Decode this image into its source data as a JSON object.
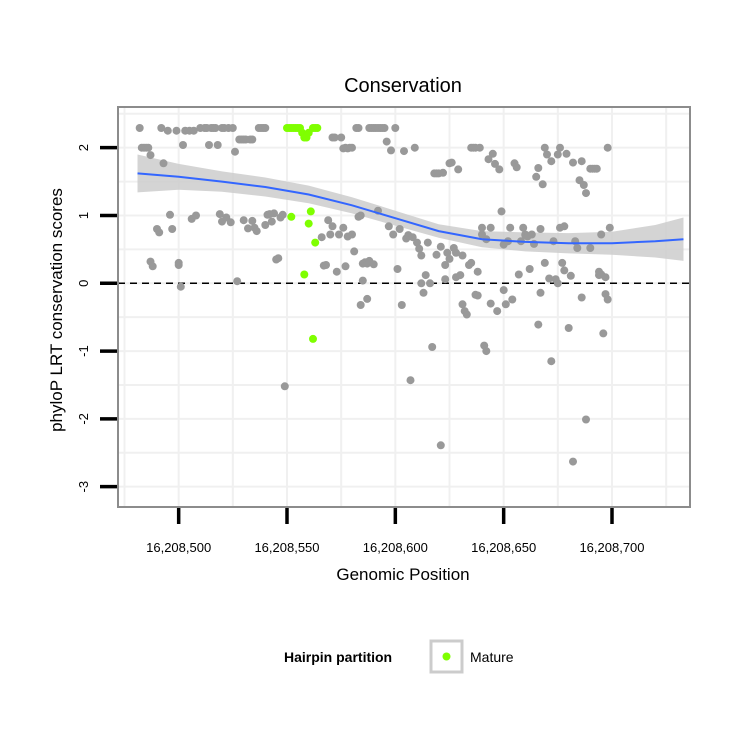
{
  "chart_data": {
    "type": "scatter",
    "title": "Conservation",
    "xlabel": "Genomic Position",
    "ylabel": "phyloP LRT conservation scores",
    "xlim": [
      16208472,
      16208736
    ],
    "ylim": [
      -3.3,
      2.6
    ],
    "x_ticks": [
      16208500,
      16208550,
      16208600,
      16208650,
      16208700
    ],
    "x_tick_labels": [
      "16,208,500",
      "16,208,550",
      "16,208,600",
      "16,208,650",
      "16,208,700"
    ],
    "y_ticks": [
      -3,
      -2,
      -1,
      0,
      1,
      2
    ],
    "y_tick_labels": [
      "-3",
      "-2",
      "-1",
      "0",
      "1",
      "2"
    ],
    "grid": true,
    "reference_line": {
      "y": 0,
      "style": "dashed"
    },
    "colors": {
      "other_points": "#999999",
      "mature_points": "#7fff00",
      "trend_line": "#3366ff",
      "confidence_band": "#cccccc",
      "panel_border": "#8c8c8c",
      "grid": "#f0f0f0"
    },
    "legend": {
      "title": "Hairpin partition",
      "placement": "bottom",
      "entries": [
        {
          "label": "Mature",
          "color": "#7fff00"
        }
      ]
    },
    "trend": {
      "x": [
        16208481,
        16208500,
        16208520,
        16208540,
        16208560,
        16208580,
        16208600,
        16208620,
        16208640,
        16208660,
        16208680,
        16208700,
        16208720,
        16208733
      ],
      "y": [
        1.62,
        1.57,
        1.5,
        1.42,
        1.31,
        1.15,
        0.96,
        0.77,
        0.65,
        0.61,
        0.59,
        0.59,
        0.62,
        0.65
      ],
      "lower": [
        1.34,
        1.38,
        1.35,
        1.28,
        1.18,
        1.03,
        0.85,
        0.67,
        0.53,
        0.47,
        0.44,
        0.42,
        0.38,
        0.33
      ],
      "upper": [
        1.9,
        1.76,
        1.65,
        1.56,
        1.44,
        1.27,
        1.07,
        0.87,
        0.77,
        0.75,
        0.74,
        0.76,
        0.86,
        0.97
      ]
    },
    "series": [
      {
        "name": "Mature",
        "points": [
          [
            16208550,
            2.29
          ],
          [
            16208551,
            2.29
          ],
          [
            16208552,
            2.29
          ],
          [
            16208553,
            2.29
          ],
          [
            16208554,
            2.29
          ],
          [
            16208555,
            2.29
          ],
          [
            16208556,
            2.29
          ],
          [
            16208557,
            2.22
          ],
          [
            16208558,
            2.15
          ],
          [
            16208559,
            2.15
          ],
          [
            16208560,
            2.22
          ],
          [
            16208562,
            2.29
          ],
          [
            16208563,
            2.29
          ],
          [
            16208564,
            2.29
          ],
          [
            16208552,
            0.98
          ],
          [
            16208558,
            0.13
          ],
          [
            16208560,
            0.88
          ],
          [
            16208561,
            1.06
          ],
          [
            16208563,
            0.6
          ],
          [
            16208562,
            -0.82
          ]
        ]
      },
      {
        "points": [
          [
            16208482,
            2.29
          ],
          [
            16208483,
            2.0
          ],
          [
            16208484,
            2.0
          ],
          [
            16208485,
            2.0
          ],
          [
            16208486,
            2.0
          ],
          [
            16208487,
            1.89
          ],
          [
            16208487,
            0.32
          ],
          [
            16208488,
            0.25
          ],
          [
            16208490,
            0.8
          ],
          [
            16208491,
            0.75
          ],
          [
            16208492,
            2.29
          ],
          [
            16208493,
            1.77
          ],
          [
            16208495,
            2.25
          ],
          [
            16208496,
            1.01
          ],
          [
            16208497,
            0.8
          ],
          [
            16208499,
            2.25
          ],
          [
            16208500,
            0.27
          ],
          [
            16208500,
            0.3
          ],
          [
            16208501,
            -0.05
          ],
          [
            16208502,
            2.04
          ],
          [
            16208503,
            2.25
          ],
          [
            16208505,
            2.25
          ],
          [
            16208506,
            0.95
          ],
          [
            16208507,
            2.25
          ],
          [
            16208508,
            1.0
          ],
          [
            16208510,
            2.29
          ],
          [
            16208512,
            2.29
          ],
          [
            16208513,
            2.29
          ],
          [
            16208514,
            2.04
          ],
          [
            16208515,
            2.29
          ],
          [
            16208516,
            2.29
          ],
          [
            16208517,
            2.29
          ],
          [
            16208518,
            2.04
          ],
          [
            16208519,
            1.02
          ],
          [
            16208520,
            2.29
          ],
          [
            16208520,
            0.91
          ],
          [
            16208521,
            2.29
          ],
          [
            16208522,
            0.97
          ],
          [
            16208523,
            2.29
          ],
          [
            16208524,
            0.9
          ],
          [
            16208525,
            2.29
          ],
          [
            16208526,
            1.94
          ],
          [
            16208527,
            0.03
          ],
          [
            16208528,
            2.12
          ],
          [
            16208529,
            2.12
          ],
          [
            16208530,
            0.93
          ],
          [
            16208530,
            2.12
          ],
          [
            16208531,
            2.12
          ],
          [
            16208532,
            0.81
          ],
          [
            16208533,
            2.12
          ],
          [
            16208534,
            2.12
          ],
          [
            16208534,
            0.92
          ],
          [
            16208535,
            0.82
          ],
          [
            16208536,
            0.77
          ],
          [
            16208537,
            2.29
          ],
          [
            16208538,
            2.29
          ],
          [
            16208539,
            2.29
          ],
          [
            16208540,
            0.86
          ],
          [
            16208540,
            2.29
          ],
          [
            16208541,
            1.01
          ],
          [
            16208542,
            1.02
          ],
          [
            16208543,
            0.91
          ],
          [
            16208544,
            1.03
          ],
          [
            16208545,
            0.35
          ],
          [
            16208546,
            0.37
          ],
          [
            16208547,
            0.97
          ],
          [
            16208548,
            1.01
          ],
          [
            16208549,
            -1.52
          ],
          [
            16208566,
            0.68
          ],
          [
            16208567,
            0.26
          ],
          [
            16208568,
            0.27
          ],
          [
            16208569,
            0.93
          ],
          [
            16208570,
            0.72
          ],
          [
            16208571,
            2.15
          ],
          [
            16208571,
            0.84
          ],
          [
            16208572,
            2.15
          ],
          [
            16208573,
            0.17
          ],
          [
            16208574,
            0.72
          ],
          [
            16208575,
            2.15
          ],
          [
            16208576,
            1.99
          ],
          [
            16208576,
            0.82
          ],
          [
            16208577,
            2.0
          ],
          [
            16208577,
            0.25
          ],
          [
            16208578,
            1.99
          ],
          [
            16208578,
            0.69
          ],
          [
            16208579,
            2.0
          ],
          [
            16208580,
            2.0
          ],
          [
            16208580,
            0.72
          ],
          [
            16208581,
            0.47
          ],
          [
            16208582,
            2.29
          ],
          [
            16208583,
            2.29
          ],
          [
            16208583,
            0.98
          ],
          [
            16208584,
            1.0
          ],
          [
            16208584,
            -0.32
          ],
          [
            16208585,
            0.29
          ],
          [
            16208585,
            0.04
          ],
          [
            16208586,
            0.31
          ],
          [
            16208587,
            -0.23
          ],
          [
            16208587,
            0.29
          ],
          [
            16208588,
            2.29
          ],
          [
            16208588,
            0.33
          ],
          [
            16208589,
            2.29
          ],
          [
            16208590,
            2.29
          ],
          [
            16208590,
            0.28
          ],
          [
            16208591,
            2.29
          ],
          [
            16208592,
            2.29
          ],
          [
            16208592,
            1.07
          ],
          [
            16208593,
            2.29
          ],
          [
            16208594,
            2.29
          ],
          [
            16208595,
            2.29
          ],
          [
            16208596,
            2.09
          ],
          [
            16208597,
            0.84
          ],
          [
            16208598,
            1.96
          ],
          [
            16208599,
            0.72
          ],
          [
            16208600,
            2.29
          ],
          [
            16208601,
            0.21
          ],
          [
            16208602,
            0.8
          ],
          [
            16208603,
            -0.32
          ],
          [
            16208604,
            1.95
          ],
          [
            16208605,
            0.66
          ],
          [
            16208606,
            0.71
          ],
          [
            16208607,
            -1.43
          ],
          [
            16208608,
            0.68
          ],
          [
            16208609,
            2.0
          ],
          [
            16208610,
            0.6
          ],
          [
            16208611,
            0.51
          ],
          [
            16208612,
            0.41
          ],
          [
            16208612,
            0.0
          ],
          [
            16208613,
            -0.14
          ],
          [
            16208614,
            0.12
          ],
          [
            16208615,
            0.6
          ],
          [
            16208616,
            0.0
          ],
          [
            16208617,
            -0.94
          ],
          [
            16208618,
            1.62
          ],
          [
            16208619,
            1.62
          ],
          [
            16208619,
            0.42
          ],
          [
            16208620,
            1.62
          ],
          [
            16208621,
            0.54
          ],
          [
            16208621,
            -2.39
          ],
          [
            16208622,
            1.63
          ],
          [
            16208623,
            0.06
          ],
          [
            16208623,
            0.27
          ],
          [
            16208624,
            0.45
          ],
          [
            16208625,
            1.77
          ],
          [
            16208625,
            0.36
          ],
          [
            16208626,
            1.78
          ],
          [
            16208627,
            0.52
          ],
          [
            16208628,
            0.09
          ],
          [
            16208628,
            0.45
          ],
          [
            16208629,
            1.68
          ],
          [
            16208630,
            0.12
          ],
          [
            16208631,
            -0.31
          ],
          [
            16208631,
            0.41
          ],
          [
            16208632,
            -0.41
          ],
          [
            16208633,
            -0.46
          ],
          [
            16208634,
            0.27
          ],
          [
            16208635,
            2.0
          ],
          [
            16208635,
            0.3
          ],
          [
            16208636,
            2.0
          ],
          [
            16208637,
            2.0
          ],
          [
            16208637,
            -0.17
          ],
          [
            16208638,
            -0.18
          ],
          [
            16208638,
            0.17
          ],
          [
            16208639,
            2.0
          ],
          [
            16208640,
            0.72
          ],
          [
            16208640,
            0.82
          ],
          [
            16208641,
            -0.92
          ],
          [
            16208642,
            -1.0
          ],
          [
            16208642,
            0.65
          ],
          [
            16208643,
            1.83
          ],
          [
            16208644,
            0.82
          ],
          [
            16208644,
            -0.3
          ],
          [
            16208645,
            1.91
          ],
          [
            16208646,
            1.76
          ],
          [
            16208647,
            -0.41
          ],
          [
            16208648,
            1.68
          ],
          [
            16208649,
            1.06
          ],
          [
            16208650,
            0.57
          ],
          [
            16208650,
            -0.1
          ],
          [
            16208651,
            -0.31
          ],
          [
            16208652,
            0.62
          ],
          [
            16208653,
            0.82
          ],
          [
            16208654,
            -0.24
          ],
          [
            16208655,
            1.77
          ],
          [
            16208656,
            1.71
          ],
          [
            16208657,
            0.13
          ],
          [
            16208658,
            0.62
          ],
          [
            16208659,
            0.82
          ],
          [
            16208660,
            0.72
          ],
          [
            16208660,
            0.71
          ],
          [
            16208661,
            0.69
          ],
          [
            16208662,
            0.21
          ],
          [
            16208663,
            0.72
          ],
          [
            16208664,
            0.58
          ],
          [
            16208665,
            1.57
          ],
          [
            16208666,
            -0.61
          ],
          [
            16208666,
            1.7
          ],
          [
            16208667,
            0.8
          ],
          [
            16208667,
            -0.14
          ],
          [
            16208668,
            1.46
          ],
          [
            16208669,
            2.0
          ],
          [
            16208669,
            0.3
          ],
          [
            16208670,
            1.9
          ],
          [
            16208671,
            0.07
          ],
          [
            16208672,
            1.8
          ],
          [
            16208672,
            -1.15
          ],
          [
            16208673,
            0.62
          ],
          [
            16208674,
            0.06
          ],
          [
            16208675,
            1.9
          ],
          [
            16208675,
            0.0
          ],
          [
            16208676,
            0.82
          ],
          [
            16208676,
            2.0
          ],
          [
            16208677,
            0.3
          ],
          [
            16208678,
            0.84
          ],
          [
            16208678,
            0.19
          ],
          [
            16208679,
            1.91
          ],
          [
            16208680,
            -0.66
          ],
          [
            16208681,
            0.11
          ],
          [
            16208682,
            1.78
          ],
          [
            16208682,
            -2.63
          ],
          [
            16208683,
            0.62
          ],
          [
            16208684,
            0.52
          ],
          [
            16208685,
            1.52
          ],
          [
            16208686,
            1.8
          ],
          [
            16208686,
            -0.21
          ],
          [
            16208687,
            1.45
          ],
          [
            16208688,
            -2.01
          ],
          [
            16208688,
            1.33
          ],
          [
            16208690,
            0.52
          ],
          [
            16208690,
            1.69
          ],
          [
            16208691,
            1.69
          ],
          [
            16208692,
            1.69
          ],
          [
            16208693,
            1.69
          ],
          [
            16208694,
            0.12
          ],
          [
            16208694,
            0.17
          ],
          [
            16208695,
            0.13
          ],
          [
            16208695,
            0.72
          ],
          [
            16208696,
            -0.74
          ],
          [
            16208697,
            -0.16
          ],
          [
            16208697,
            0.09
          ],
          [
            16208698,
            -0.24
          ],
          [
            16208698,
            2.0
          ],
          [
            16208699,
            0.82
          ]
        ]
      }
    ]
  }
}
